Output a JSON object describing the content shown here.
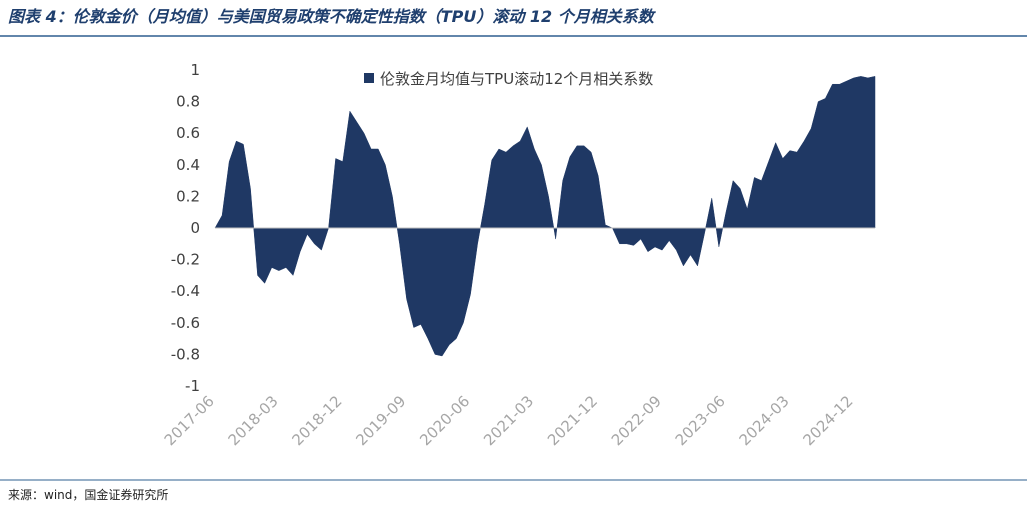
{
  "chart_data": {
    "type": "area",
    "title": "图表 4：伦敦金价（月均值）与美国贸易政策不确定性指数（TPU）滚动 12 个月相关系数",
    "source": "来源：wind，国金证券研究所",
    "categories": [
      "2017-06",
      null,
      null,
      null,
      null,
      null,
      null,
      null,
      null,
      "2018-03",
      null,
      null,
      null,
      null,
      null,
      null,
      null,
      null,
      "2018-12",
      null,
      null,
      null,
      null,
      null,
      null,
      null,
      null,
      "2019-09",
      null,
      null,
      null,
      null,
      null,
      null,
      null,
      null,
      "2020-06",
      null,
      null,
      null,
      null,
      null,
      null,
      null,
      null,
      "2021-03",
      null,
      null,
      null,
      null,
      null,
      null,
      null,
      null,
      "2021-12",
      null,
      null,
      null,
      null,
      null,
      null,
      null,
      null,
      "2022-09",
      null,
      null,
      null,
      null,
      null,
      null,
      null,
      null,
      "2023-06",
      null,
      null,
      null,
      null,
      null,
      null,
      null,
      null,
      "2024-03",
      null,
      null,
      null,
      null,
      null,
      null,
      null,
      null,
      "2024-12",
      null,
      null,
      null
    ],
    "series": [
      {
        "name": "伦敦金月均值与TPU滚动12个月相关系数",
        "color": "#1f3864",
        "values": [
          0,
          0.08,
          0.42,
          0.55,
          0.53,
          0.25,
          -0.3,
          -0.35,
          -0.25,
          -0.27,
          -0.25,
          -0.3,
          -0.15,
          -0.04,
          -0.1,
          -0.14,
          0,
          0.44,
          0.42,
          0.74,
          0.67,
          0.6,
          0.5,
          0.5,
          0.4,
          0.2,
          -0.1,
          -0.45,
          -0.63,
          -0.61,
          -0.7,
          -0.8,
          -0.81,
          -0.74,
          -0.7,
          -0.6,
          -0.42,
          -0.1,
          0.15,
          0.43,
          0.5,
          0.48,
          0.52,
          0.55,
          0.64,
          0.5,
          0.4,
          0.2,
          -0.07,
          0.3,
          0.45,
          0.52,
          0.52,
          0.48,
          0.33,
          0.02,
          0,
          -0.1,
          -0.1,
          -0.11,
          -0.07,
          -0.15,
          -0.12,
          -0.14,
          -0.08,
          -0.14,
          -0.24,
          -0.17,
          -0.24,
          -0.03,
          0.19,
          -0.12,
          0.1,
          0.3,
          0.25,
          0.12,
          0.32,
          0.3,
          0.42,
          0.54,
          0.44,
          0.49,
          0.48,
          0.55,
          0.63,
          0.8,
          0.82,
          0.91,
          0.91,
          0.93,
          0.95,
          0.96,
          0.95,
          0.96
        ]
      }
    ],
    "ylim": [
      -1,
      1
    ],
    "yticks": [
      1,
      0.8,
      0.6,
      0.4,
      0.2,
      0,
      -0.2,
      -0.4,
      -0.6,
      -0.8,
      -1
    ],
    "legend": "top"
  }
}
